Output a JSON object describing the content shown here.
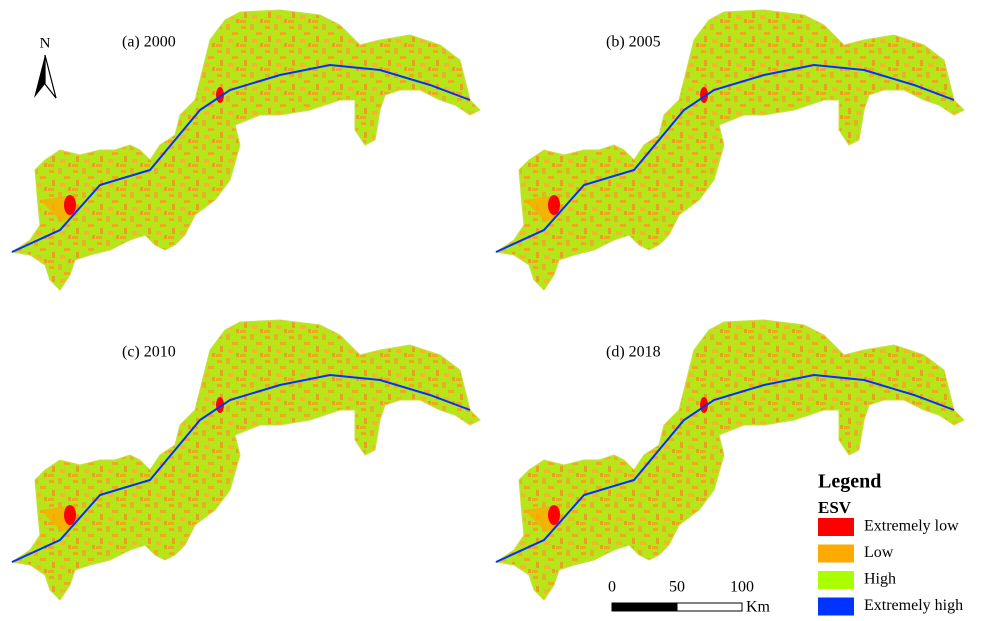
{
  "north": "N",
  "panels": [
    {
      "label": "(a) 2000"
    },
    {
      "label": "(b) 2005"
    },
    {
      "label": "(c) 2010"
    },
    {
      "label": "(d) 2018"
    }
  ],
  "legend": {
    "title": "Legend",
    "subtitle": "ESV",
    "items": [
      {
        "label": "Extremely low",
        "color": "#ff0000"
      },
      {
        "label": "Low",
        "color": "#ffaa00"
      },
      {
        "label": "High",
        "color": "#aaff00"
      },
      {
        "label": "Extremely high",
        "color": "#0033ff"
      }
    ]
  },
  "scale_bar": {
    "ticks": [
      0,
      50,
      100
    ],
    "unit": "Km"
  }
}
